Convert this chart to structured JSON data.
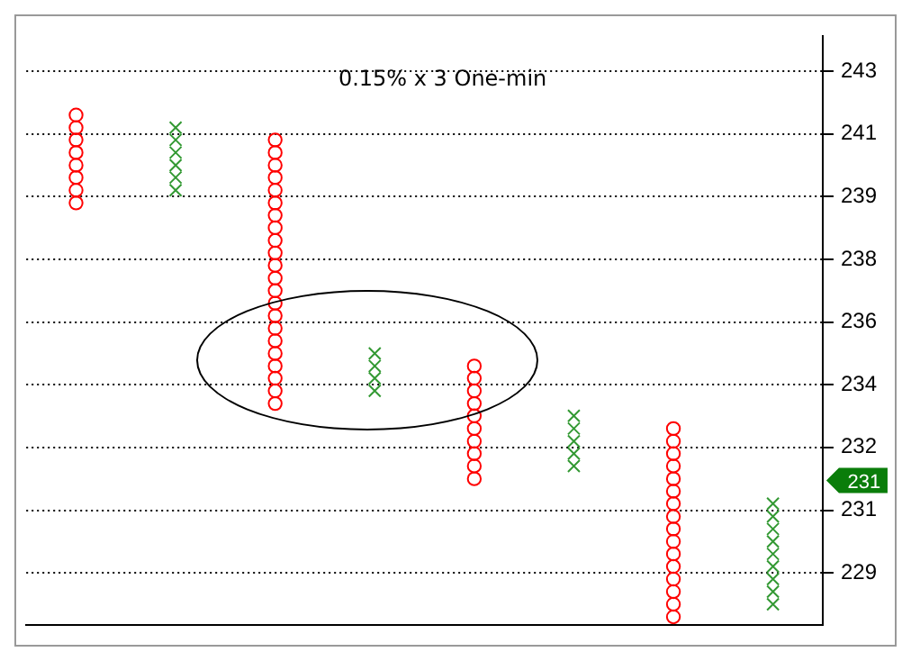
{
  "chart_data": {
    "type": "scatter",
    "title": "0.15% x 3 One-min",
    "log": true,
    "grid": "y",
    "tick_labels": "y",
    "ylim": [
      227.6,
      244.0
    ],
    "categories": [
      null,
      null,
      null,
      null,
      null,
      null,
      null,
      null
    ],
    "yticks": [
      229,
      {
        "value": 230.7,
        "label": "231"
      },
      {
        "value": 232.42,
        "label": "232"
      },
      {
        "value": 234.15,
        "label": "234"
      },
      {
        "value": 235.89,
        "label": "236"
      },
      {
        "value": 237.65,
        "label": "238"
      },
      {
        "value": 239.42,
        "label": "239"
      },
      {
        "value": 241.2,
        "label": "241"
      },
      243
    ],
    "annotations": [
      "231"
    ],
    "series": [
      {
        "marker": "circle",
        "color": "#ff0000",
        "values": [
          239.24,
          null,
          233.63,
          null,
          231.56,
          null,
          227.81,
          null
        ]
      },
      {
        "marker": "circle",
        "color": "#ff0000",
        "values": [
          239.6,
          null,
          233.98,
          null,
          231.91,
          null,
          228.15,
          null
        ]
      },
      {
        "marker": "circle",
        "color": "#ff0000",
        "values": [
          239.96,
          null,
          234.33,
          null,
          232.25,
          null,
          228.49,
          null
        ]
      },
      {
        "marker": "circle",
        "color": "#ff0000",
        "values": [
          240.31,
          null,
          234.67,
          null,
          232.59,
          null,
          228.83,
          null
        ]
      },
      {
        "marker": "circle",
        "color": "#ff0000",
        "values": [
          240.67,
          null,
          235.02,
          null,
          232.94,
          null,
          229.17,
          null
        ]
      },
      {
        "marker": "circle",
        "color": "#ff0000",
        "values": [
          241.03,
          null,
          235.37,
          null,
          233.29,
          null,
          229.51,
          null
        ]
      },
      {
        "marker": "circle",
        "color": "#ff0000",
        "values": [
          241.38,
          null,
          235.72,
          null,
          233.63,
          null,
          229.85,
          null
        ]
      },
      {
        "marker": "circle",
        "color": "#ff0000",
        "values": [
          241.74,
          null,
          236.07,
          null,
          233.98,
          null,
          230.19,
          null
        ]
      },
      {
        "marker": "circle",
        "color": "#ff0000",
        "values": [
          null,
          null,
          236.42,
          null,
          234.33,
          null,
          230.53,
          null
        ]
      },
      {
        "marker": "circle",
        "color": "#ff0000",
        "values": [
          null,
          null,
          236.77,
          null,
          234.67,
          null,
          230.88,
          null
        ]
      },
      {
        "marker": "circle",
        "color": "#ff0000",
        "values": [
          null,
          null,
          237.12,
          null,
          null,
          null,
          231.22,
          null
        ]
      },
      {
        "marker": "circle",
        "color": "#ff0000",
        "values": [
          null,
          null,
          237.48,
          null,
          null,
          null,
          231.56,
          null
        ]
      },
      {
        "marker": "circle",
        "color": "#ff0000",
        "values": [
          null,
          null,
          237.83,
          null,
          null,
          null,
          231.91,
          null
        ]
      },
      {
        "marker": "circle",
        "color": "#ff0000",
        "values": [
          null,
          null,
          238.18,
          null,
          null,
          null,
          232.25,
          null
        ]
      },
      {
        "marker": "circle",
        "color": "#ff0000",
        "values": [
          null,
          null,
          238.54,
          null,
          null,
          null,
          232.59,
          null
        ]
      },
      {
        "marker": "circle",
        "color": "#ff0000",
        "values": [
          null,
          null,
          238.89,
          null,
          null,
          null,
          232.94,
          null
        ]
      },
      {
        "marker": "circle",
        "color": "#ff0000",
        "values": [
          null,
          null,
          239.24,
          null,
          null,
          null,
          null,
          null
        ]
      },
      {
        "marker": "circle",
        "color": "#ff0000",
        "values": [
          null,
          null,
          239.6,
          null,
          null,
          null,
          null,
          null
        ]
      },
      {
        "marker": "circle",
        "color": "#ff0000",
        "values": [
          null,
          null,
          239.96,
          null,
          null,
          null,
          null,
          null
        ]
      },
      {
        "marker": "circle",
        "color": "#ff0000",
        "values": [
          null,
          null,
          240.31,
          null,
          null,
          null,
          null,
          null
        ]
      },
      {
        "marker": "circle",
        "color": "#ff0000",
        "values": [
          null,
          null,
          240.67,
          null,
          null,
          null,
          null,
          null
        ]
      },
      {
        "marker": "circle",
        "color": "#ff0000",
        "values": [
          null,
          null,
          241.03,
          null,
          null,
          null,
          null,
          null
        ]
      },
      {
        "marker": "cross",
        "color": "#339933",
        "values": [
          null,
          239.6,
          null,
          233.98,
          null,
          231.91,
          null,
          228.15
        ]
      },
      {
        "marker": "cross",
        "color": "#339933",
        "values": [
          null,
          239.96,
          null,
          234.33,
          null,
          232.25,
          null,
          228.49
        ]
      },
      {
        "marker": "cross",
        "color": "#339933",
        "values": [
          null,
          240.31,
          null,
          234.67,
          null,
          232.59,
          null,
          228.83
        ]
      },
      {
        "marker": "cross",
        "color": "#339933",
        "values": [
          null,
          240.67,
          null,
          235.02,
          null,
          232.94,
          null,
          229.17
        ]
      },
      {
        "marker": "cross",
        "color": "#339933",
        "values": [
          null,
          241.03,
          null,
          null,
          null,
          233.29,
          null,
          229.51
        ]
      },
      {
        "marker": "cross",
        "color": "#339933",
        "values": [
          null,
          241.38,
          null,
          null,
          null,
          null,
          null,
          229.85
        ]
      },
      {
        "marker": "cross",
        "color": "#339933",
        "values": [
          null,
          null,
          null,
          null,
          null,
          null,
          null,
          230.19
        ]
      },
      {
        "marker": "cross",
        "color": "#339933",
        "values": [
          null,
          null,
          null,
          null,
          null,
          null,
          null,
          230.53
        ]
      },
      {
        "marker": "cross",
        "color": "#339933",
        "values": [
          null,
          null,
          null,
          null,
          null,
          null,
          null,
          230.88
        ]
      }
    ]
  }
}
